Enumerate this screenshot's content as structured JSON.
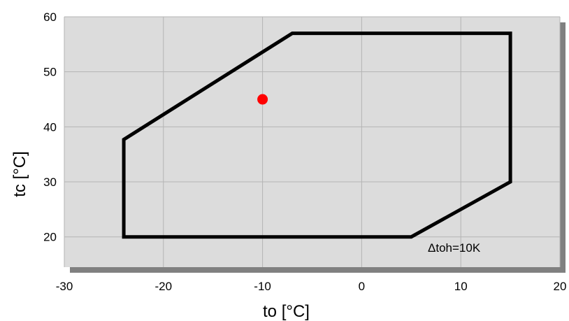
{
  "chart_data": {
    "type": "line",
    "title": "",
    "xlabel": "to [°C]",
    "ylabel": "tc [°C]",
    "xlim": [
      -30,
      20
    ],
    "ylim": [
      14.5,
      60
    ],
    "xticks": [
      -30,
      -20,
      -10,
      0,
      10,
      20
    ],
    "yticks": [
      20,
      30,
      40,
      50,
      60
    ],
    "grid": true,
    "envelope": {
      "x": [
        -24,
        -24,
        5,
        15,
        15,
        -7,
        -24
      ],
      "y": [
        20,
        37.7,
        20,
        30,
        57,
        57,
        37.7
      ]
    },
    "envelope_points": [
      {
        "x": -24,
        "y": 20
      },
      {
        "x": 5,
        "y": 20
      },
      {
        "x": 15,
        "y": 30
      },
      {
        "x": 15,
        "y": 57
      },
      {
        "x": -7,
        "y": 57
      },
      {
        "x": -24,
        "y": 37.7
      }
    ],
    "point": {
      "x": -10,
      "y": 45
    },
    "annotation": "Δtoh=10K",
    "colors": {
      "plot_background": "#dcdcdc",
      "shadow": "#808080",
      "grid": "#b4b4b4",
      "envelope": "#000000",
      "point": "#ff0000"
    }
  }
}
